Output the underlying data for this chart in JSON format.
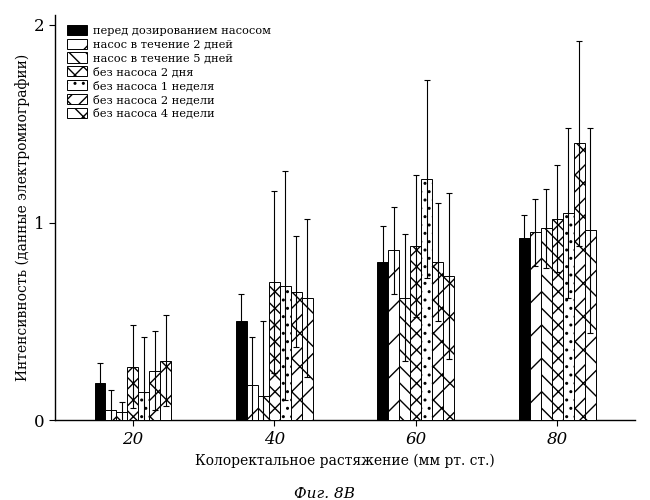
{
  "title": "Фиг. 8В",
  "xlabel": "Колоректальное растяжение (мм рт. ст.)",
  "ylabel": "Интенсивность (данные электромиографии)",
  "xtick_labels": [
    "20",
    "40",
    "60",
    "80"
  ],
  "legend_labels": [
    "перед дозированием насосом",
    "насос в течение 2 дней",
    "насос в течение 5 дней",
    "без насоса 2 дня",
    "без насоса 1 неделя",
    "без насоса 2 недели",
    "без насоса 4 недели"
  ],
  "bar_values": [
    [
      0.19,
      0.5,
      0.8,
      0.92
    ],
    [
      0.05,
      0.18,
      0.86,
      0.95
    ],
    [
      0.04,
      0.12,
      0.62,
      0.97
    ],
    [
      0.27,
      0.7,
      0.88,
      1.02
    ],
    [
      0.14,
      0.68,
      1.22,
      1.05
    ],
    [
      0.25,
      0.65,
      0.8,
      1.4
    ],
    [
      0.3,
      0.62,
      0.73,
      0.96
    ]
  ],
  "bar_errors": [
    [
      0.1,
      0.14,
      0.18,
      0.12
    ],
    [
      0.1,
      0.24,
      0.22,
      0.17
    ],
    [
      0.05,
      0.38,
      0.32,
      0.2
    ],
    [
      0.21,
      0.46,
      0.36,
      0.27
    ],
    [
      0.28,
      0.58,
      0.5,
      0.43
    ],
    [
      0.2,
      0.28,
      0.3,
      0.52
    ],
    [
      0.23,
      0.4,
      0.42,
      0.52
    ]
  ],
  "n_series": 7,
  "n_groups": 4
}
